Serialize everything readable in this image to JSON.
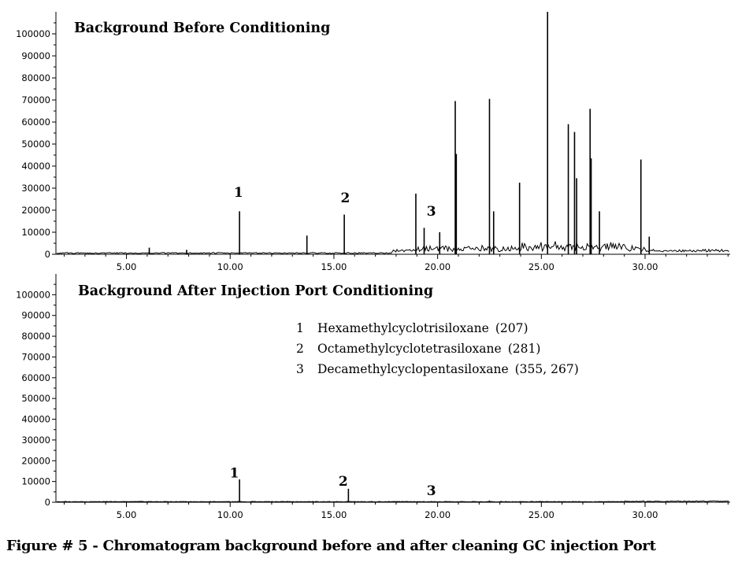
{
  "caption": "Figure # 5 - Chromatogram background before and after cleaning GC injection Port",
  "chart_data": [
    {
      "type": "line",
      "title": "Background Before Conditioning",
      "xlim": [
        1.6,
        34.1
      ],
      "ylim": [
        0,
        110000
      ],
      "x_ticks": [
        "5.00",
        "10.00",
        "15.00",
        "20.00",
        "25.00",
        "30.00"
      ],
      "y_ticks": [
        "0",
        "10000",
        "20000",
        "30000",
        "40000",
        "50000",
        "60000",
        "70000",
        "80000",
        "90000",
        "100000"
      ],
      "peak_labels": [
        {
          "text": "1",
          "x": 10.4,
          "y": 26000
        },
        {
          "text": "2",
          "x": 15.55,
          "y": 23500
        },
        {
          "text": "3",
          "x": 19.7,
          "y": 17500
        }
      ],
      "peaks": [
        {
          "x": 6.1,
          "y": 3000
        },
        {
          "x": 7.9,
          "y": 2000
        },
        {
          "x": 10.45,
          "y": 19500
        },
        {
          "x": 13.7,
          "y": 8500
        },
        {
          "x": 15.5,
          "y": 18000
        },
        {
          "x": 18.95,
          "y": 27500
        },
        {
          "x": 19.35,
          "y": 12000
        },
        {
          "x": 20.1,
          "y": 10000
        },
        {
          "x": 20.85,
          "y": 69500
        },
        {
          "x": 20.9,
          "y": 45500
        },
        {
          "x": 22.5,
          "y": 70500
        },
        {
          "x": 22.7,
          "y": 19500
        },
        {
          "x": 23.95,
          "y": 32500
        },
        {
          "x": 25.3,
          "y": 110000
        },
        {
          "x": 26.3,
          "y": 59000
        },
        {
          "x": 26.6,
          "y": 55500
        },
        {
          "x": 26.7,
          "y": 34500
        },
        {
          "x": 27.35,
          "y": 66000
        },
        {
          "x": 27.4,
          "y": 43500
        },
        {
          "x": 27.8,
          "y": 19500
        },
        {
          "x": 29.8,
          "y": 43000
        },
        {
          "x": 30.2,
          "y": 8000
        }
      ]
    },
    {
      "type": "line",
      "title": "Background After Injection Port Conditioning",
      "xlim": [
        1.6,
        34.1
      ],
      "ylim": [
        0,
        110000
      ],
      "x_ticks": [
        "5.00",
        "10.00",
        "15.00",
        "20.00",
        "25.00",
        "30.00"
      ],
      "y_ticks": [
        "0",
        "10000",
        "20000",
        "30000",
        "40000",
        "50000",
        "60000",
        "70000",
        "80000",
        "90000",
        "100000"
      ],
      "peak_labels": [
        {
          "text": "1",
          "x": 10.2,
          "y": 12000
        },
        {
          "text": "2",
          "x": 15.45,
          "y": 8000
        },
        {
          "text": "3",
          "x": 19.7,
          "y": 3500
        }
      ],
      "legend": [
        {
          "num": "1",
          "name": "Hexamethylcyclotrisiloxane",
          "ions": "(207)"
        },
        {
          "num": "2",
          "name": "Octamethylcyclotetrasiloxane",
          "ions": "(281)"
        },
        {
          "num": "3",
          "name": "Decamethylcyclopentasiloxane",
          "ions": "(355, 267)"
        }
      ],
      "peaks": [
        {
          "x": 10.45,
          "y": 11000
        },
        {
          "x": 15.7,
          "y": 6500
        },
        {
          "x": 19.7,
          "y": 500
        },
        {
          "x": 22.5,
          "y": 800
        }
      ]
    }
  ]
}
